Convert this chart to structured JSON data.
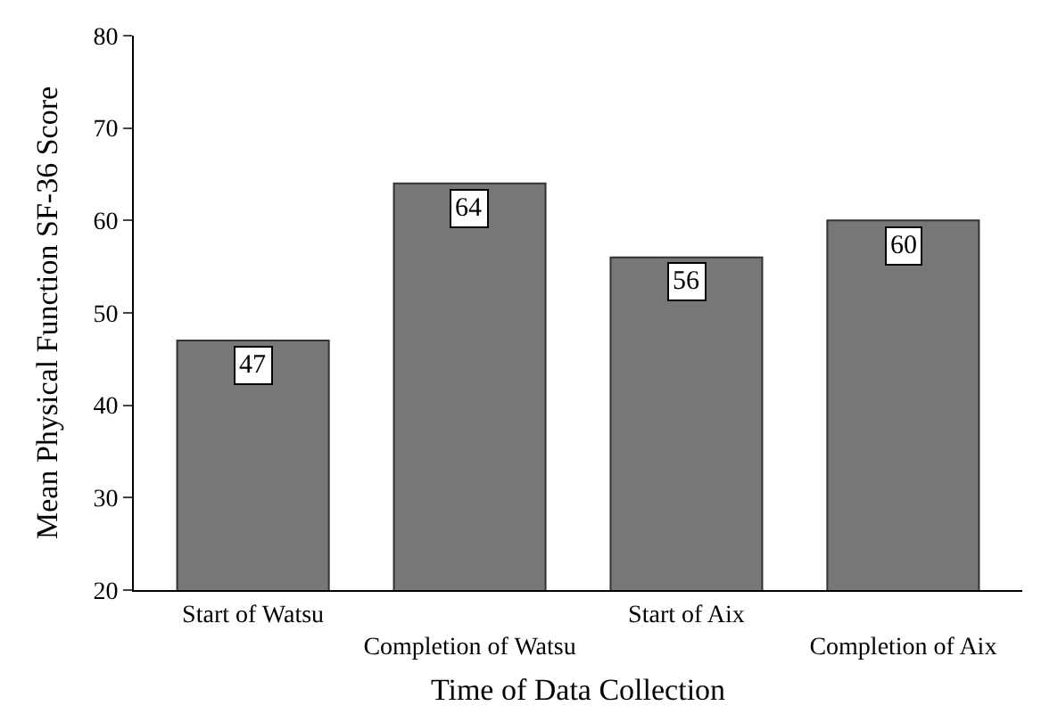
{
  "chart_data": {
    "type": "bar",
    "categories": [
      "Start of Watsu",
      "Completion of Watsu",
      "Start of Aix",
      "Completion of Aix"
    ],
    "values": [
      47,
      64,
      56,
      60
    ],
    "color": "#777777",
    "xlabel": "Time of Data Collection",
    "ylabel": "Mean Physical Function SF-36 Score",
    "ylim": [
      20,
      80
    ],
    "yticks": [
      20,
      30,
      40,
      50,
      60,
      70,
      80
    ],
    "data_labels": true
  }
}
